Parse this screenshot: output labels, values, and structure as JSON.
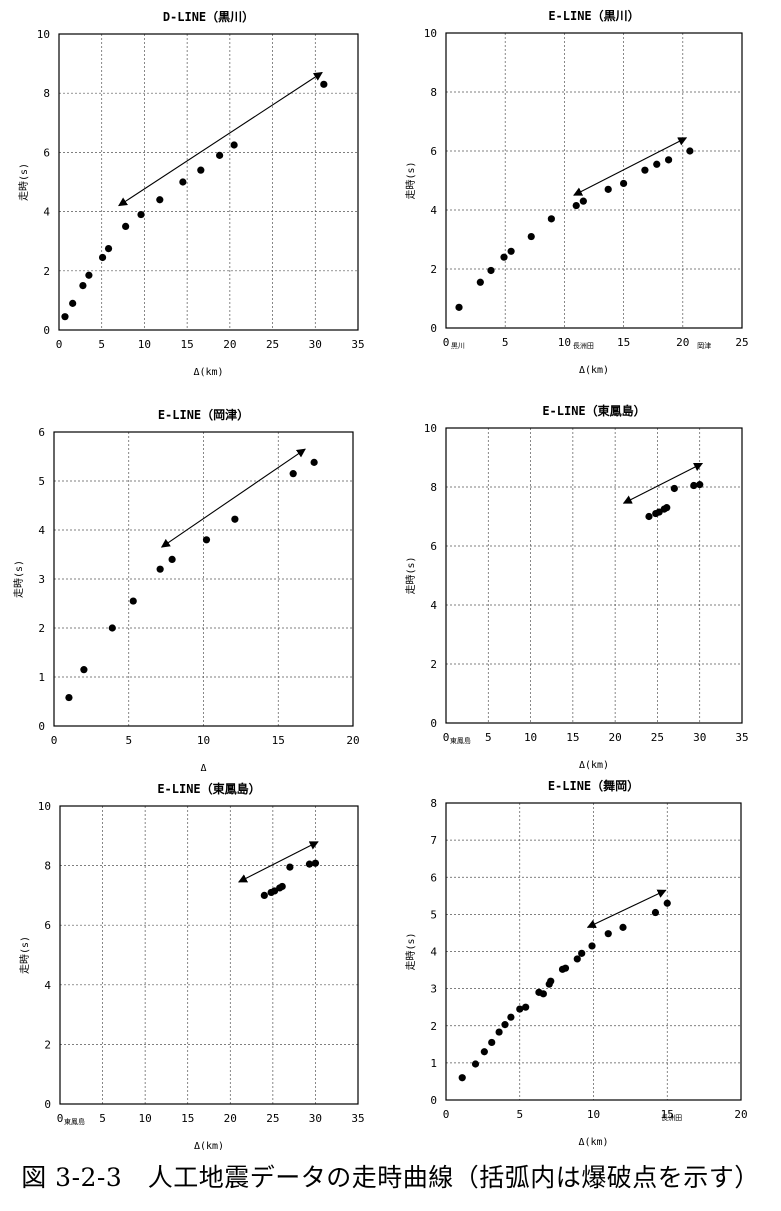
{
  "caption": "図 3-2-3　人工地震データの走時曲線（括弧内は爆破点を示す）",
  "chart_data": [
    {
      "type": "scatter",
      "title": "D-LINE（黒川）",
      "xlabel": "Δ(km)",
      "ylabel": "走時(s)",
      "xlim": [
        0,
        35
      ],
      "ylim": [
        0,
        10
      ],
      "xticks": [
        "0",
        "5",
        "10",
        "15",
        "20",
        "25",
        "30",
        "35"
      ],
      "yticks": [
        "0",
        "2",
        "4",
        "6",
        "8",
        "10"
      ],
      "grid": true,
      "points": [
        [
          0.7,
          0.45
        ],
        [
          1.6,
          0.9
        ],
        [
          2.8,
          1.5
        ],
        [
          3.5,
          1.85
        ],
        [
          5.1,
          2.45
        ],
        [
          5.8,
          2.75
        ],
        [
          7.8,
          3.5
        ],
        [
          9.6,
          3.9
        ],
        [
          11.8,
          4.4
        ],
        [
          14.5,
          5.0
        ],
        [
          16.6,
          5.4
        ],
        [
          18.8,
          5.9
        ],
        [
          20.5,
          6.25
        ],
        [
          31.0,
          8.3
        ]
      ],
      "arrow": [
        [
          7.0,
          4.2
        ],
        [
          30.8,
          8.7
        ]
      ]
    },
    {
      "type": "scatter",
      "title": "E-LINE（黒川）",
      "xlabel": "Δ(km)",
      "ylabel": "走時(s)",
      "xlim": [
        0,
        25
      ],
      "ylim": [
        0,
        10
      ],
      "xticks": [
        "0",
        "5",
        "10",
        "15",
        "20",
        "25"
      ],
      "yticks": [
        "0",
        "2",
        "4",
        "6",
        "8",
        "10"
      ],
      "grid": true,
      "station_labels": [
        {
          "x": 1.0,
          "text": "黒川"
        },
        {
          "x": 11.6,
          "text": "長洲田"
        },
        {
          "x": 21.8,
          "text": "岡津"
        }
      ],
      "points": [
        [
          1.1,
          0.7
        ],
        [
          2.9,
          1.55
        ],
        [
          3.8,
          1.95
        ],
        [
          4.9,
          2.4
        ],
        [
          5.5,
          2.6
        ],
        [
          7.2,
          3.1
        ],
        [
          8.9,
          3.7
        ],
        [
          11.0,
          4.15
        ],
        [
          11.6,
          4.3
        ],
        [
          13.7,
          4.7
        ],
        [
          15.0,
          4.9
        ],
        [
          16.8,
          5.35
        ],
        [
          17.8,
          5.55
        ],
        [
          18.8,
          5.7
        ],
        [
          20.6,
          6.0
        ]
      ],
      "arrow": [
        [
          10.8,
          4.5
        ],
        [
          20.3,
          6.45
        ]
      ]
    },
    {
      "type": "scatter",
      "title": "E-LINE（岡津）",
      "xlabel": "Δ",
      "ylabel": "走時(s)",
      "xlim": [
        0,
        20
      ],
      "ylim": [
        0,
        6
      ],
      "xticks": [
        "0",
        "5",
        "10",
        "15",
        "20"
      ],
      "yticks": [
        "0",
        "1",
        "2",
        "3",
        "4",
        "5",
        "6"
      ],
      "grid": true,
      "points": [
        [
          1.0,
          0.58
        ],
        [
          2.0,
          1.15
        ],
        [
          3.9,
          2.0
        ],
        [
          5.3,
          2.55
        ],
        [
          7.1,
          3.2
        ],
        [
          7.9,
          3.4
        ],
        [
          10.2,
          3.8
        ],
        [
          12.1,
          4.22
        ],
        [
          16.0,
          5.15
        ],
        [
          17.4,
          5.38
        ]
      ],
      "arrow": [
        [
          7.2,
          3.65
        ],
        [
          16.8,
          5.65
        ]
      ]
    },
    {
      "type": "scatter",
      "title": "E-LINE（東鳳島）",
      "xlabel": "Δ(km)",
      "ylabel": "走時(s)",
      "xlim": [
        0,
        35
      ],
      "ylim": [
        0,
        10
      ],
      "xticks": [
        "0",
        "5",
        "10",
        "15",
        "20",
        "25",
        "30",
        "35"
      ],
      "yticks": [
        "0",
        "2",
        "4",
        "6",
        "8",
        "10"
      ],
      "grid": true,
      "station_labels": [
        {
          "x": 1.7,
          "text": "東鳳島"
        }
      ],
      "points": [
        [
          24.0,
          7.0
        ],
        [
          24.8,
          7.1
        ],
        [
          25.2,
          7.15
        ],
        [
          25.8,
          7.25
        ],
        [
          26.1,
          7.3
        ],
        [
          27.0,
          7.95
        ],
        [
          29.3,
          8.05
        ],
        [
          30.0,
          8.08
        ]
      ],
      "arrow": [
        [
          21.0,
          7.45
        ],
        [
          30.3,
          8.8
        ]
      ]
    },
    {
      "type": "scatter",
      "title": "E-LINE（東鳳島）",
      "xlabel": "Δ(km)",
      "ylabel": "走時(s)",
      "xlim": [
        0,
        35
      ],
      "ylim": [
        0,
        10
      ],
      "xticks": [
        "0",
        "5",
        "10",
        "15",
        "20",
        "25",
        "30",
        "35"
      ],
      "yticks": [
        "0",
        "2",
        "4",
        "6",
        "8",
        "10"
      ],
      "grid": true,
      "station_labels": [
        {
          "x": 1.7,
          "text": "東鳳島"
        }
      ],
      "points": [
        [
          24.0,
          7.0
        ],
        [
          24.8,
          7.1
        ],
        [
          25.2,
          7.15
        ],
        [
          25.8,
          7.25
        ],
        [
          26.1,
          7.3
        ],
        [
          27.0,
          7.95
        ],
        [
          29.3,
          8.05
        ],
        [
          30.0,
          8.08
        ]
      ],
      "arrow": [
        [
          21.0,
          7.45
        ],
        [
          30.3,
          8.8
        ]
      ]
    },
    {
      "type": "scatter",
      "title": "E-LINE（舞岡）",
      "xlabel": "Δ(km)",
      "ylabel": "走時(s)",
      "xlim": [
        0,
        20
      ],
      "ylim": [
        0,
        8
      ],
      "xticks": [
        "0",
        "5",
        "10",
        "15",
        "20"
      ],
      "yticks": [
        "0",
        "1",
        "2",
        "3",
        "4",
        "5",
        "6",
        "7",
        "8"
      ],
      "grid": true,
      "station_labels": [
        {
          "x": 15.3,
          "text": "長洲田"
        }
      ],
      "points": [
        [
          1.1,
          0.6
        ],
        [
          2.0,
          0.97
        ],
        [
          2.6,
          1.3
        ],
        [
          3.1,
          1.55
        ],
        [
          3.6,
          1.83
        ],
        [
          4.0,
          2.03
        ],
        [
          4.4,
          2.23
        ],
        [
          5.0,
          2.45
        ],
        [
          5.4,
          2.5
        ],
        [
          6.3,
          2.9
        ],
        [
          6.6,
          2.86
        ],
        [
          7.0,
          3.12
        ],
        [
          7.1,
          3.2
        ],
        [
          7.9,
          3.52
        ],
        [
          8.1,
          3.55
        ],
        [
          8.9,
          3.8
        ],
        [
          9.2,
          3.95
        ],
        [
          9.9,
          4.15
        ],
        [
          11.0,
          4.48
        ],
        [
          12.0,
          4.65
        ],
        [
          14.2,
          5.05
        ],
        [
          15.0,
          5.3
        ]
      ],
      "arrow": [
        [
          9.6,
          4.65
        ],
        [
          14.9,
          5.65
        ]
      ]
    }
  ]
}
